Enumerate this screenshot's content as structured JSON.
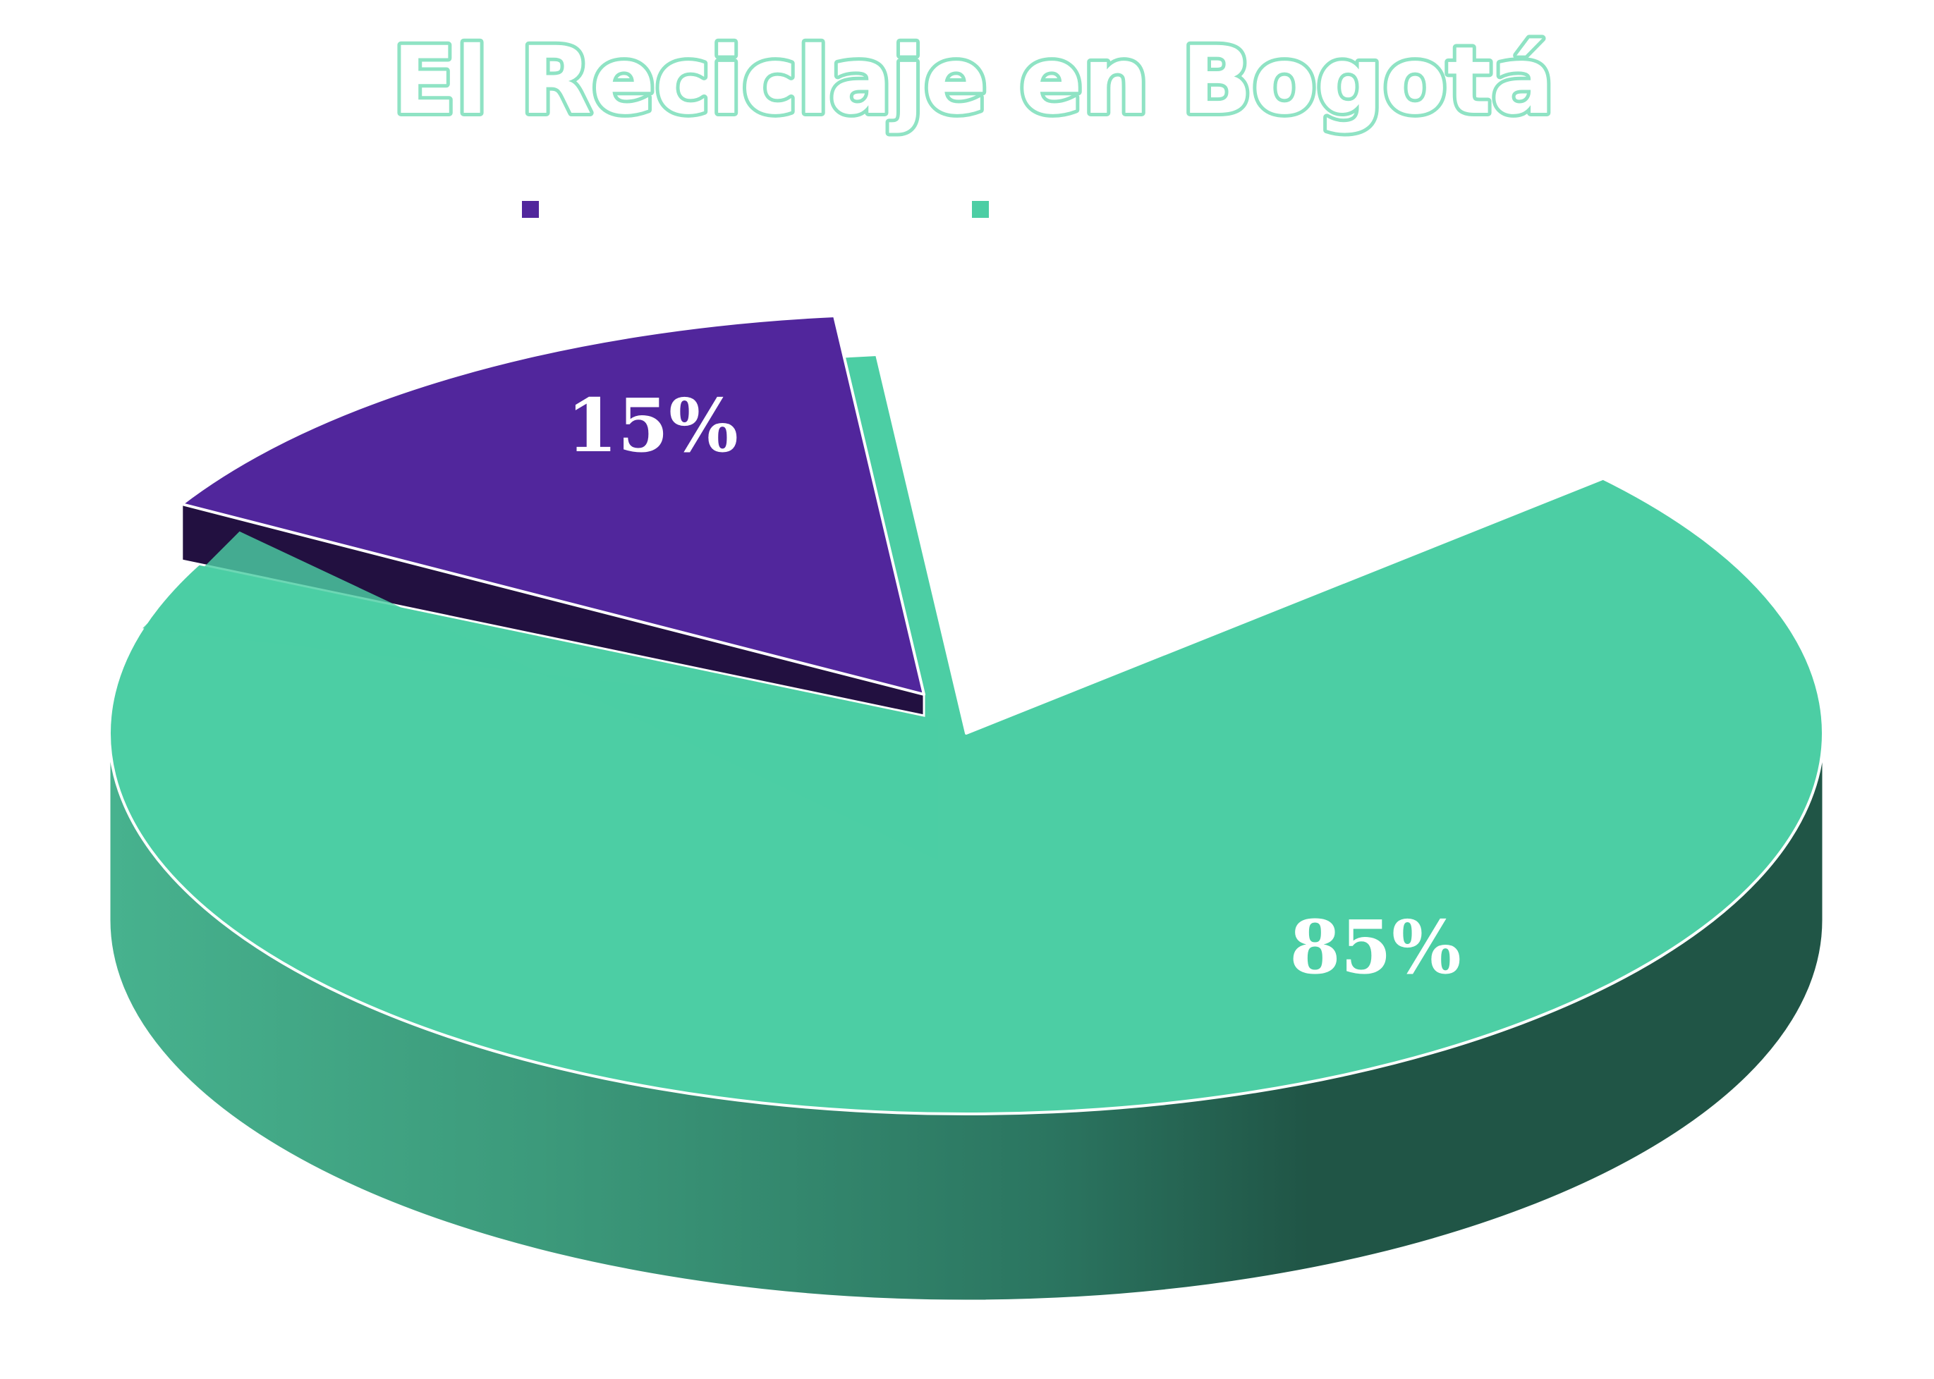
{
  "chart_data": {
    "type": "pie",
    "title": "El Reciclaje en Bogotá",
    "slices": [
      {
        "value": 15,
        "label": "15%",
        "color": "#51269c",
        "side_color": "#221040",
        "exploded": true
      },
      {
        "value": 85,
        "label": "85%",
        "color": "#4ccea4",
        "side_color_light": "#47b28e",
        "side_color_dark": "#205546",
        "exploded": false
      }
    ],
    "legend": {
      "placement": "top",
      "entries": [
        {
          "name": "",
          "color": "#51269c"
        },
        {
          "name": "",
          "color": "#4ccea4"
        }
      ]
    },
    "style": "3d"
  }
}
